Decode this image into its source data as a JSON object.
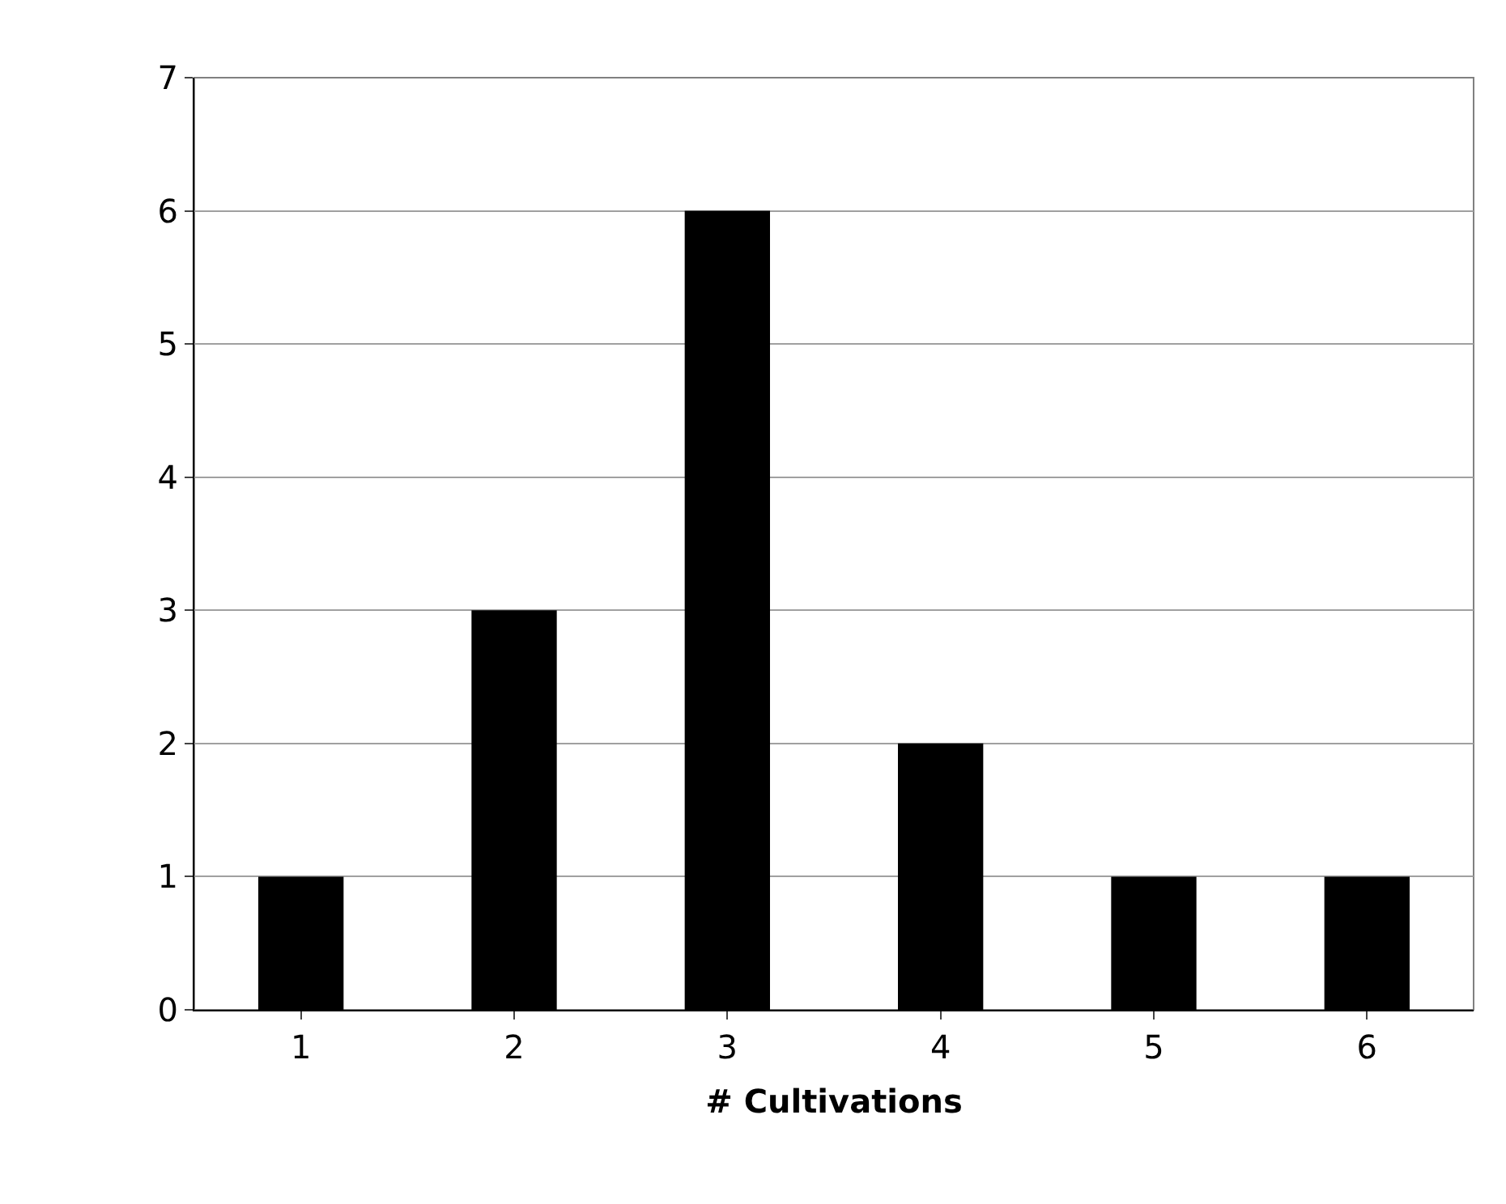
{
  "chart_data": {
    "type": "bar",
    "xlabel": "# Cultivations",
    "categories": [
      "1",
      "2",
      "3",
      "4",
      "5",
      "6"
    ],
    "values": [
      1,
      3,
      6,
      2,
      1,
      1
    ],
    "color": "#000000",
    "ylim": [
      0,
      7
    ],
    "yticks": [
      0,
      1,
      2,
      3,
      4,
      5,
      6,
      7
    ],
    "grid": "y"
  }
}
